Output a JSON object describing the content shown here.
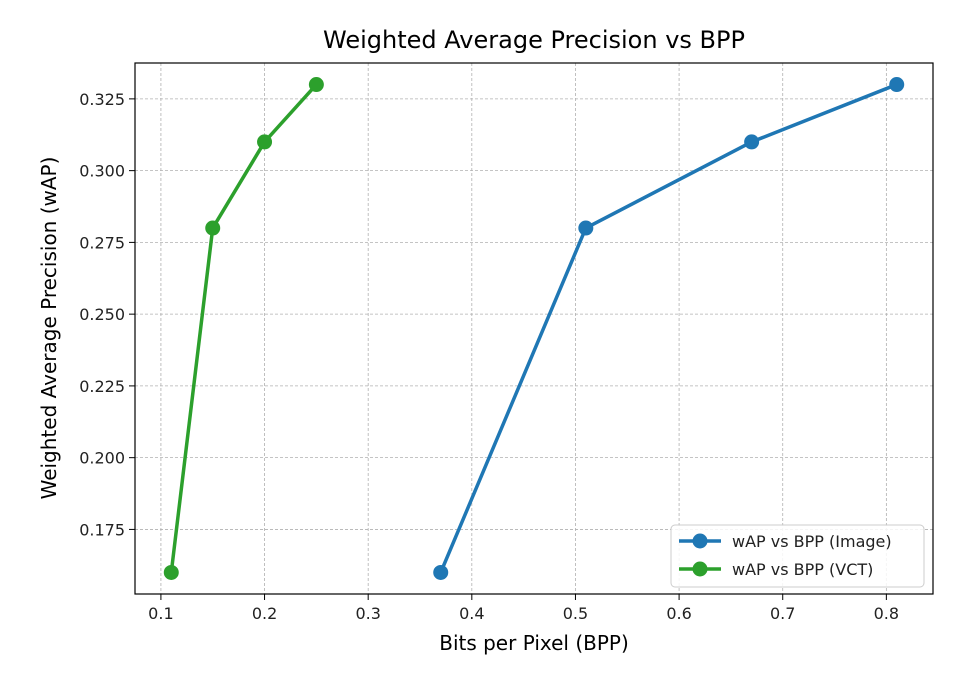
{
  "chart_data": {
    "type": "line",
    "title": "Weighted Average Precision vs BPP",
    "xlabel": "Bits per Pixel (BPP)",
    "ylabel": "Weighted Average Precision (wAP)",
    "xlim": [
      0.075,
      0.845
    ],
    "ylim": [
      0.1525,
      0.3375
    ],
    "xticks": [
      0.1,
      0.2,
      0.3,
      0.4,
      0.5,
      0.6,
      0.7,
      0.8
    ],
    "xtick_labels": [
      "0.1",
      "0.2",
      "0.3",
      "0.4",
      "0.5",
      "0.6",
      "0.7",
      "0.8"
    ],
    "yticks": [
      0.175,
      0.2,
      0.225,
      0.25,
      0.275,
      0.3,
      0.325
    ],
    "ytick_labels": [
      "0.175",
      "0.200",
      "0.225",
      "0.250",
      "0.275",
      "0.300",
      "0.325"
    ],
    "grid": true,
    "legend_position": "lower-right",
    "series": [
      {
        "name": "wAP vs BPP (Image)",
        "color": "#1f77b4",
        "x": [
          0.37,
          0.51,
          0.67,
          0.81
        ],
        "y": [
          0.16,
          0.28,
          0.31,
          0.33
        ]
      },
      {
        "name": "wAP vs BPP (VCT)",
        "color": "#2ca02c",
        "x": [
          0.11,
          0.15,
          0.2,
          0.25
        ],
        "y": [
          0.16,
          0.28,
          0.31,
          0.33
        ]
      }
    ]
  }
}
